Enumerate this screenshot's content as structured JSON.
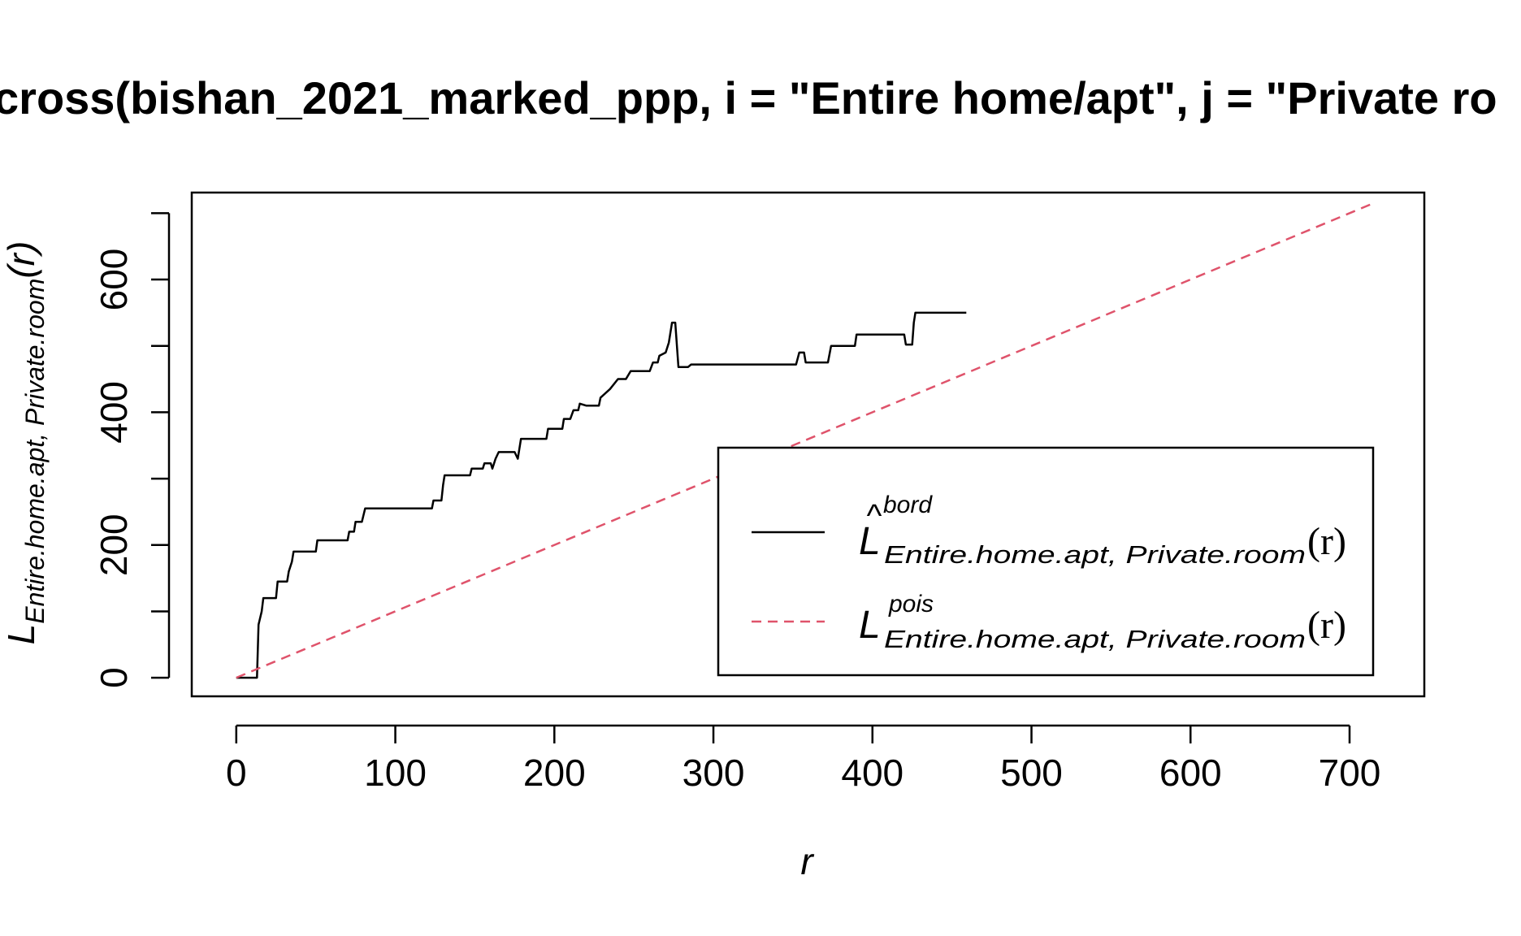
{
  "chart_data": {
    "type": "line",
    "title": "cross(bishan_2021_marked_ppp, i = \"Entire home/apt\", j = \"Private ro",
    "xlabel": "r",
    "ylabel": {
      "main": "L",
      "sub": "Entire.home.apt, Private.room",
      "arg": "(r)"
    },
    "xlim": [
      -28,
      747
    ],
    "ylim": [
      -28,
      731
    ],
    "x_ticks": [
      0,
      100,
      200,
      300,
      400,
      500,
      600,
      700
    ],
    "x_tick_labels": [
      "0",
      "100",
      "200",
      "300",
      "400",
      "500",
      "600",
      "700"
    ],
    "y_ticks": [
      0,
      100,
      200,
      300,
      400,
      500,
      600,
      700
    ],
    "y_tick_labels": [
      "0",
      "",
      "200",
      "",
      "400",
      "",
      "600",
      ""
    ],
    "series": [
      {
        "key": "bord",
        "color": "#000000",
        "dash": "solid",
        "legend": {
          "main": "L",
          "hat": "^",
          "sup": "bord",
          "sub": "Entire.home.apt, Private.room",
          "arg": "(r)"
        },
        "points": [
          [
            0,
            0
          ],
          [
            13,
            0
          ],
          [
            14,
            80
          ],
          [
            16,
            100
          ],
          [
            17,
            120
          ],
          [
            25,
            120
          ],
          [
            26,
            145
          ],
          [
            32,
            145
          ],
          [
            33,
            160
          ],
          [
            35,
            175
          ],
          [
            36,
            190
          ],
          [
            50,
            190
          ],
          [
            51,
            207
          ],
          [
            70,
            207
          ],
          [
            71,
            220
          ],
          [
            74,
            220
          ],
          [
            75,
            235
          ],
          [
            79,
            235
          ],
          [
            80,
            245
          ],
          [
            81,
            255
          ],
          [
            120,
            255
          ],
          [
            123,
            255
          ],
          [
            124,
            267
          ],
          [
            129,
            267
          ],
          [
            130,
            290
          ],
          [
            131,
            305
          ],
          [
            147,
            305
          ],
          [
            148,
            315
          ],
          [
            155,
            315
          ],
          [
            156,
            323
          ],
          [
            160,
            323
          ],
          [
            161,
            315
          ],
          [
            163,
            330
          ],
          [
            165,
            340
          ],
          [
            175,
            340
          ],
          [
            177,
            330
          ],
          [
            179,
            360
          ],
          [
            195,
            360
          ],
          [
            196,
            375
          ],
          [
            205,
            375
          ],
          [
            206,
            390
          ],
          [
            210,
            390
          ],
          [
            212,
            403
          ],
          [
            215,
            403
          ],
          [
            216,
            413
          ],
          [
            220,
            410
          ],
          [
            228,
            410
          ],
          [
            229,
            422
          ],
          [
            235,
            435
          ],
          [
            240,
            450
          ],
          [
            245,
            450
          ],
          [
            248,
            462
          ],
          [
            260,
            462
          ],
          [
            262,
            475
          ],
          [
            265,
            475
          ],
          [
            266,
            485
          ],
          [
            270,
            490
          ],
          [
            272,
            505
          ],
          [
            274,
            535
          ],
          [
            276,
            535
          ],
          [
            278,
            468
          ],
          [
            284,
            468
          ],
          [
            286,
            472
          ],
          [
            300,
            472
          ],
          [
            352,
            472
          ],
          [
            354,
            490
          ],
          [
            357,
            490
          ],
          [
            358,
            475
          ],
          [
            372,
            475
          ],
          [
            374,
            500
          ],
          [
            389,
            500
          ],
          [
            390,
            517
          ],
          [
            420,
            517
          ],
          [
            421,
            502
          ],
          [
            425,
            502
          ],
          [
            426,
            535
          ],
          [
            427,
            550
          ],
          [
            459,
            550
          ]
        ]
      },
      {
        "key": "pois",
        "color": "#DF536B",
        "dash": "dashed",
        "legend": {
          "main": "L",
          "hat": "",
          "sup": "pois",
          "sub": "Entire.home.apt, Private.room",
          "arg": "(r)"
        },
        "points": [
          [
            0,
            0
          ],
          [
            715,
            715
          ]
        ]
      }
    ],
    "legend_position": "bottom-right",
    "grid": false
  }
}
